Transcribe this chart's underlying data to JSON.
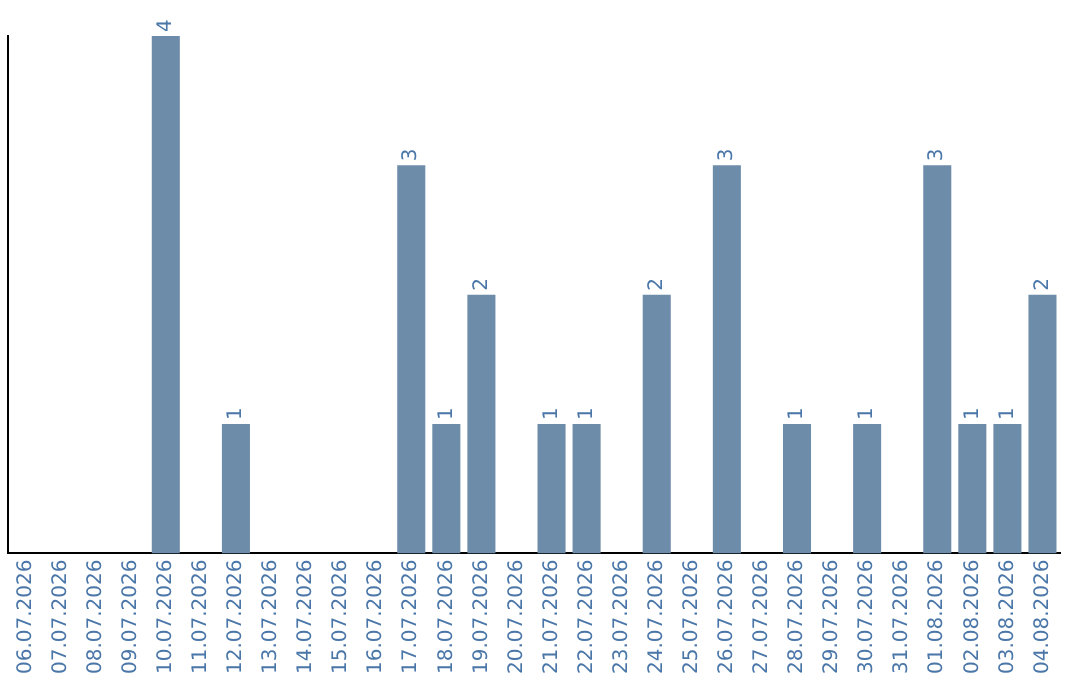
{
  "chart_data": {
    "type": "bar",
    "categories": [
      "06.07.2026",
      "07.07.2026",
      "08.07.2026",
      "09.07.2026",
      "10.07.2026",
      "11.07.2026",
      "12.07.2026",
      "13.07.2026",
      "14.07.2026",
      "15.07.2026",
      "16.07.2026",
      "17.07.2026",
      "18.07.2026",
      "19.07.2026",
      "20.07.2026",
      "21.07.2026",
      "22.07.2026",
      "23.07.2026",
      "24.07.2026",
      "25.07.2026",
      "26.07.2026",
      "27.07.2026",
      "28.07.2026",
      "29.07.2026",
      "30.07.2026",
      "31.07.2026",
      "01.08.2026",
      "02.08.2026",
      "03.08.2026",
      "04.08.2026"
    ],
    "values": [
      0,
      0,
      0,
      0,
      4,
      0,
      1,
      0,
      0,
      0,
      0,
      3,
      1,
      2,
      0,
      1,
      1,
      0,
      2,
      0,
      3,
      0,
      1,
      0,
      1,
      0,
      3,
      1,
      1,
      2
    ],
    "value_labels": [
      null,
      null,
      null,
      null,
      "4",
      null,
      "1",
      null,
      null,
      null,
      null,
      "3",
      "1",
      "2",
      null,
      "1",
      "1",
      null,
      "2",
      null,
      "3",
      null,
      "1",
      null,
      "1",
      null,
      "3",
      "1",
      "1",
      "2"
    ],
    "color": "#6d8ca9",
    "ylim": [
      0,
      4
    ],
    "tick_labels": "x",
    "grid": false,
    "legend": false
  }
}
